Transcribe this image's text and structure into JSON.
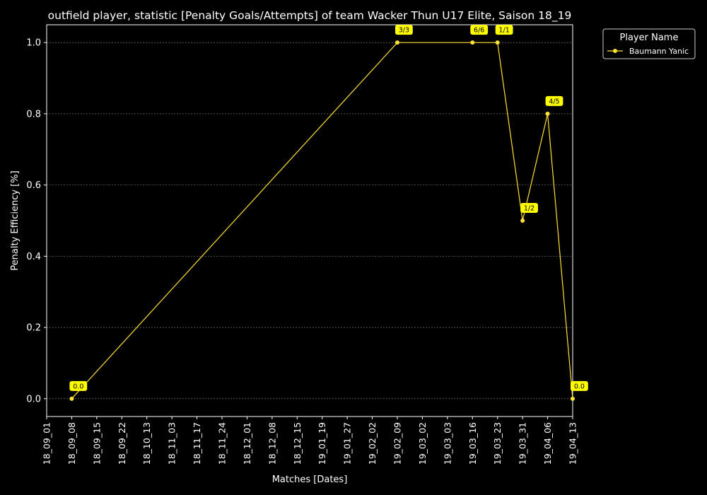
{
  "chart_data": {
    "type": "line",
    "title": "outfield player, statistic [Penalty Goals/Attempts] of team Wacker Thun U17 Elite, Saison 18_19",
    "xlabel": "Matches [Dates]",
    "ylabel": "Penalty Efficiency [%]",
    "categories": [
      "18_09_01",
      "18_09_08",
      "18_09_15",
      "18_09_22",
      "18_10_13",
      "18_11_03",
      "18_11_17",
      "18_11_24",
      "18_12_01",
      "18_12_08",
      "18_12_15",
      "19_01_19",
      "19_01_27",
      "19_02_02",
      "19_02_09",
      "19_03_02",
      "19_03_03",
      "19_03_16",
      "19_03_23",
      "19_03_31",
      "19_04_06",
      "19_04_13"
    ],
    "ylim": [
      -0.05,
      1.05
    ],
    "yticks": [
      "0.0",
      "0.2",
      "0.4",
      "0.6",
      "0.8",
      "1.0"
    ],
    "grid": "y-dashed",
    "legend": {
      "title": "Player Name",
      "placement": "outside-top-right"
    },
    "series": [
      {
        "name": "Baumann Yanic",
        "color": "#FFE135",
        "points": [
          {
            "x": "18_09_08",
            "y": 0.0,
            "label": "0.0"
          },
          {
            "x": "19_02_09",
            "y": 1.0,
            "label": "3/3"
          },
          {
            "x": "19_03_16",
            "y": 1.0,
            "label": "6/6"
          },
          {
            "x": "19_03_23",
            "y": 1.0,
            "label": "1/1"
          },
          {
            "x": "19_03_31",
            "y": 0.5,
            "label": "1/2"
          },
          {
            "x": "19_04_06",
            "y": 0.8,
            "label": "4/5"
          },
          {
            "x": "19_04_13",
            "y": 0.0,
            "label": "0.0"
          }
        ]
      }
    ],
    "label_bg": "#FFFF00",
    "text_color": "#FFFFFF",
    "background": "#000000"
  }
}
